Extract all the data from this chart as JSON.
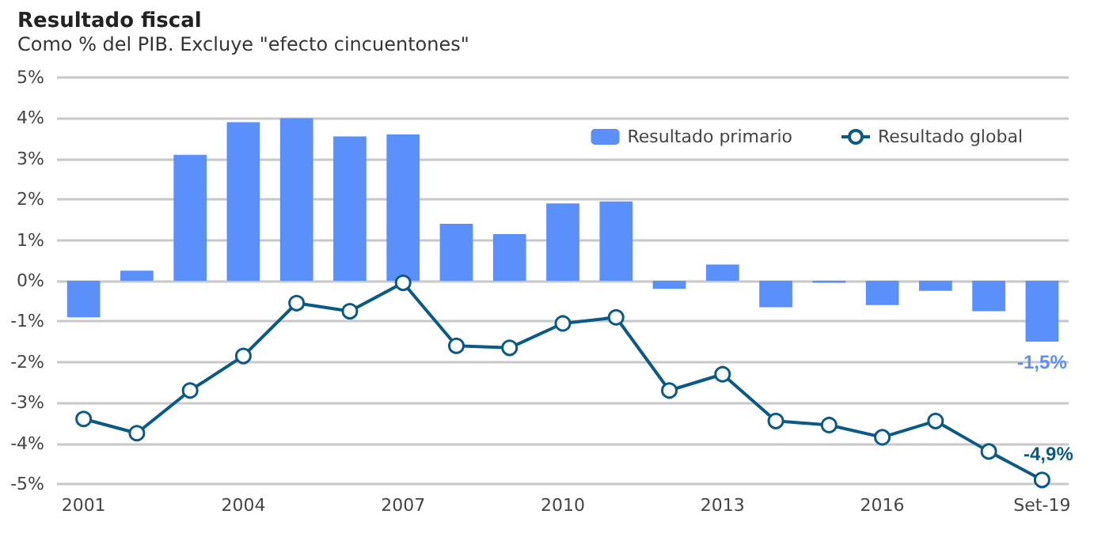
{
  "chart_data": {
    "type": "bar",
    "title": "Resultado fiscal",
    "subtitle": "Como % del PIB. Excluye \"efecto cincuentones\"",
    "categories": [
      "2001",
      null,
      null,
      "2004",
      null,
      null,
      "2007",
      null,
      null,
      "2010",
      null,
      null,
      "2013",
      null,
      null,
      "2016",
      null,
      null,
      "Set-19"
    ],
    "series": [
      {
        "name": "Resultado primario",
        "color": "#5b8ff9",
        "values": [
          -0.9,
          0.25,
          3.1,
          3.9,
          4.0,
          3.55,
          3.6,
          1.4,
          1.15,
          1.9,
          1.95,
          -0.2,
          0.4,
          -0.65,
          -0.05,
          -0.6,
          -0.25,
          -0.75,
          -1.5
        ],
        "value_labels": [
          null,
          null,
          null,
          null,
          null,
          null,
          null,
          null,
          null,
          null,
          null,
          null,
          null,
          null,
          null,
          null,
          null,
          null,
          "-1,5%"
        ]
      },
      {
        "name": "Resultado global",
        "type": "line",
        "color": "#0b5a86",
        "marker": "circle",
        "values": [
          -3.4,
          -3.75,
          -2.7,
          -1.85,
          -0.55,
          -0.75,
          -0.05,
          -1.6,
          -1.65,
          -1.05,
          -0.9,
          -2.7,
          -2.3,
          -3.45,
          -3.55,
          -3.85,
          -3.45,
          -4.2,
          -4.9
        ],
        "value_labels": [
          null,
          null,
          null,
          null,
          null,
          null,
          null,
          null,
          null,
          null,
          null,
          null,
          null,
          null,
          null,
          null,
          null,
          null,
          "-4,9%"
        ]
      }
    ],
    "ylim": [
      -5,
      5
    ],
    "yticks": [
      {
        "value": -5,
        "label": "-5%"
      },
      {
        "value": -4,
        "label": "-4%"
      },
      {
        "value": -3,
        "label": "-3%"
      },
      {
        "value": -2,
        "label": "-2%"
      },
      {
        "value": -1,
        "label": "-1%"
      },
      {
        "value": 0,
        "label": "0%"
      },
      {
        "value": 1,
        "label": "1%"
      },
      {
        "value": 2,
        "label": "2%"
      },
      {
        "value": 3,
        "label": "3%"
      },
      {
        "value": 4,
        "label": "4%"
      },
      {
        "value": 5,
        "label": "5%"
      }
    ],
    "grid": "y",
    "legend": "top right"
  }
}
